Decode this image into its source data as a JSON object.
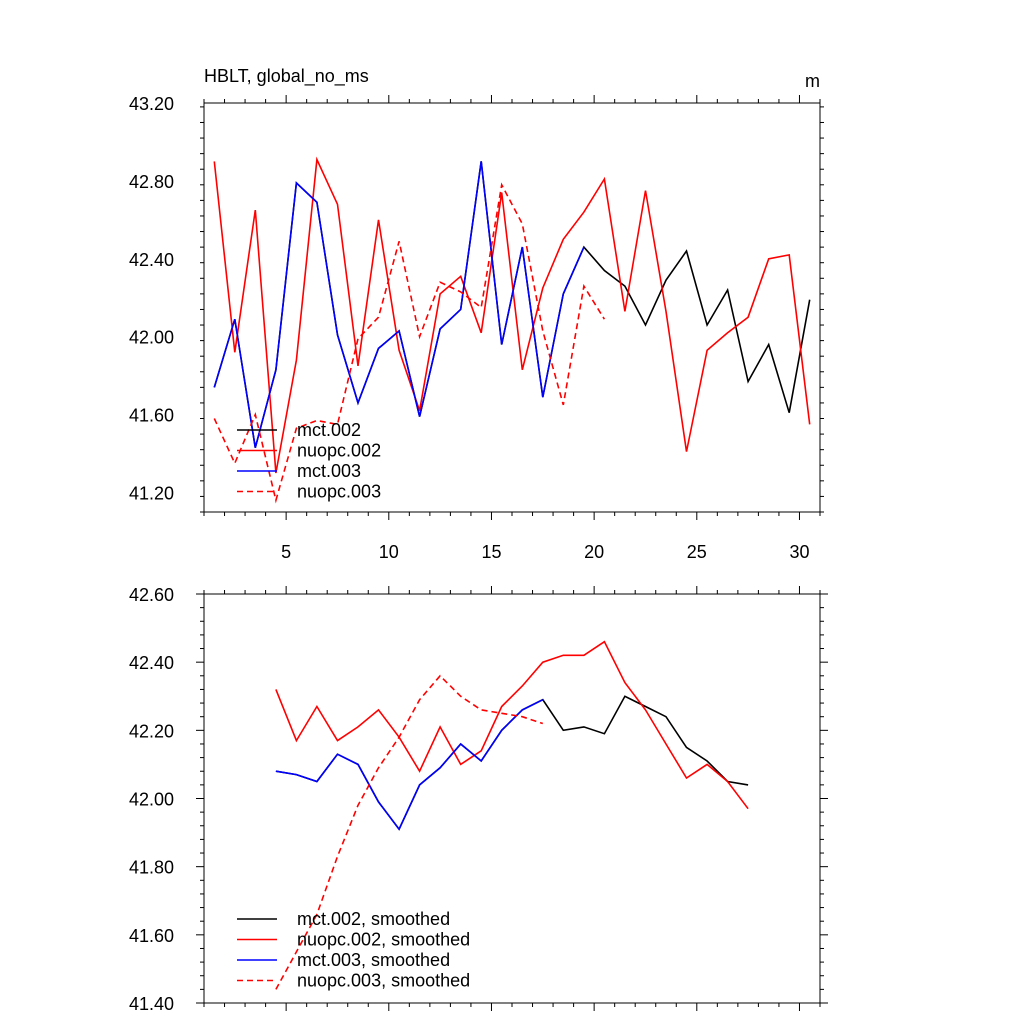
{
  "chart_data": [
    {
      "type": "line",
      "title": "HBLT, global_no_ms",
      "units": "m",
      "xlim": [
        1,
        31
      ],
      "ylim": [
        41.1,
        43.2
      ],
      "xticks": [
        5,
        10,
        15,
        20,
        25,
        30
      ],
      "yticks": [
        "41.20",
        "41.60",
        "42.00",
        "42.40",
        "42.80",
        "43.20"
      ],
      "series": [
        {
          "name": "mct.002",
          "color": "#000000",
          "dash": false,
          "x": [
            1.5,
            2.5,
            3.5,
            4.5,
            5.5,
            6.5,
            7.5,
            8.5,
            9.5,
            10.5,
            11.5,
            12.5,
            13.5,
            14.5,
            15.5,
            16.5,
            17.5,
            18.5,
            19.5,
            20.5,
            21.5,
            22.5,
            23.5,
            24.5,
            25.5,
            26.5,
            27.5,
            28.5,
            29.5,
            30.5
          ],
          "y": [
            41.74,
            42.09,
            41.43,
            41.83,
            42.79,
            42.69,
            42.01,
            41.66,
            41.94,
            42.03,
            41.59,
            42.04,
            42.14,
            42.9,
            41.96,
            42.46,
            41.69,
            42.22,
            42.46,
            42.34,
            42.26,
            42.06,
            42.29,
            42.44,
            42.06,
            42.24,
            41.77,
            41.96,
            41.61,
            42.19
          ]
        },
        {
          "name": "nuopc.002",
          "color": "#ff0000",
          "dash": false,
          "x": [
            1.5,
            2.5,
            3.5,
            4.5,
            5.5,
            6.5,
            7.5,
            8.5,
            9.5,
            10.5,
            11.5,
            12.5,
            13.5,
            14.5,
            15.5,
            16.5,
            17.5,
            18.5,
            19.5,
            20.5,
            21.5,
            22.5,
            23.5,
            24.5,
            25.5,
            26.5,
            27.5,
            28.5,
            29.5,
            30.5
          ],
          "y": [
            42.9,
            41.92,
            42.65,
            41.3,
            41.88,
            42.91,
            42.68,
            41.85,
            42.6,
            41.93,
            41.62,
            42.22,
            42.31,
            42.02,
            42.74,
            41.83,
            42.25,
            42.5,
            42.64,
            42.81,
            42.13,
            42.75,
            42.13,
            41.41,
            41.93,
            42.02,
            42.1,
            42.4,
            42.42,
            41.55
          ]
        },
        {
          "name": "mct.003",
          "color": "#0000ff",
          "dash": false,
          "x": [
            1.5,
            2.5,
            3.5,
            4.5,
            5.5,
            6.5,
            7.5,
            8.5,
            9.5,
            10.5,
            11.5,
            12.5,
            13.5,
            14.5,
            15.5,
            16.5,
            17.5,
            18.5,
            19.5
          ],
          "y": [
            41.74,
            42.09,
            41.43,
            41.83,
            42.79,
            42.69,
            42.01,
            41.66,
            41.94,
            42.03,
            41.59,
            42.04,
            42.14,
            42.9,
            41.96,
            42.46,
            41.69,
            42.22,
            42.46
          ]
        },
        {
          "name": "nuopc.003",
          "color": "#ff0000",
          "dash": true,
          "x": [
            1.5,
            2.5,
            3.5,
            4.5,
            5.5,
            6.5,
            7.5,
            8.5,
            9.5,
            10.5,
            11.5,
            12.5,
            13.5,
            14.5,
            15.5,
            16.5,
            17.5,
            18.5,
            19.5,
            20.5
          ],
          "y": [
            41.58,
            41.35,
            41.6,
            41.16,
            41.53,
            41.57,
            41.55,
            41.99,
            42.1,
            42.49,
            42.0,
            42.28,
            42.23,
            42.15,
            42.78,
            42.58,
            42.03,
            41.65,
            42.26,
            42.09
          ]
        }
      ],
      "legend": [
        "mct.002",
        "nuopc.002",
        "mct.003",
        "nuopc.003"
      ],
      "legend_position": "bottom-left"
    },
    {
      "type": "line",
      "title": "",
      "xlim": [
        1,
        31
      ],
      "ylim": [
        41.4,
        42.6
      ],
      "yticks": [
        "41.40",
        "41.60",
        "41.80",
        "42.00",
        "42.20",
        "42.40",
        "42.60"
      ],
      "series": [
        {
          "name": "mct.002, smoothed",
          "color": "#000000",
          "dash": false,
          "x": [
            4.5,
            5.5,
            6.5,
            7.5,
            8.5,
            9.5,
            10.5,
            11.5,
            12.5,
            13.5,
            14.5,
            15.5,
            16.5,
            17.5,
            18.5,
            19.5,
            20.5,
            21.5,
            22.5,
            23.5,
            24.5,
            25.5,
            26.5,
            27.5
          ],
          "y": [
            42.08,
            42.07,
            42.05,
            42.13,
            42.1,
            41.99,
            41.91,
            42.04,
            42.09,
            42.16,
            42.11,
            42.2,
            42.26,
            42.29,
            42.2,
            42.21,
            42.19,
            42.3,
            42.27,
            42.24,
            42.15,
            42.11,
            42.05,
            42.04
          ]
        },
        {
          "name": "nuopc.002, smoothed",
          "color": "#ff0000",
          "dash": false,
          "x": [
            4.5,
            5.5,
            6.5,
            7.5,
            8.5,
            9.5,
            10.5,
            11.5,
            12.5,
            13.5,
            14.5,
            15.5,
            16.5,
            17.5,
            18.5,
            19.5,
            20.5,
            21.5,
            22.5,
            23.5,
            24.5,
            25.5,
            26.5,
            27.5
          ],
          "y": [
            42.32,
            42.17,
            42.27,
            42.17,
            42.21,
            42.26,
            42.18,
            42.08,
            42.21,
            42.1,
            42.14,
            42.27,
            42.33,
            42.4,
            42.42,
            42.42,
            42.46,
            42.34,
            42.26,
            42.16,
            42.06,
            42.1,
            42.05,
            41.97
          ]
        },
        {
          "name": "mct.003, smoothed",
          "color": "#0000ff",
          "dash": false,
          "x": [
            4.5,
            5.5,
            6.5,
            7.5,
            8.5,
            9.5,
            10.5,
            11.5,
            12.5,
            13.5,
            14.5,
            15.5,
            16.5,
            17.5
          ],
          "y": [
            42.08,
            42.07,
            42.05,
            42.13,
            42.1,
            41.99,
            41.91,
            42.04,
            42.09,
            42.16,
            42.11,
            42.2,
            42.26,
            42.29
          ]
        },
        {
          "name": "nuopc.003, smoothed",
          "color": "#ff0000",
          "dash": true,
          "x": [
            4.5,
            5.5,
            6.5,
            7.5,
            8.5,
            9.5,
            10.5,
            11.5,
            12.5,
            13.5,
            14.5,
            15.5,
            16.5,
            17.5
          ],
          "y": [
            41.44,
            41.55,
            41.66,
            41.83,
            41.98,
            42.09,
            42.18,
            42.29,
            42.36,
            42.3,
            42.26,
            42.25,
            42.24,
            42.22
          ]
        }
      ],
      "legend": [
        "mct.002, smoothed",
        "nuopc.002, smoothed",
        "mct.003, smoothed",
        "nuopc.003, smoothed"
      ],
      "legend_position": "bottom-left"
    }
  ]
}
